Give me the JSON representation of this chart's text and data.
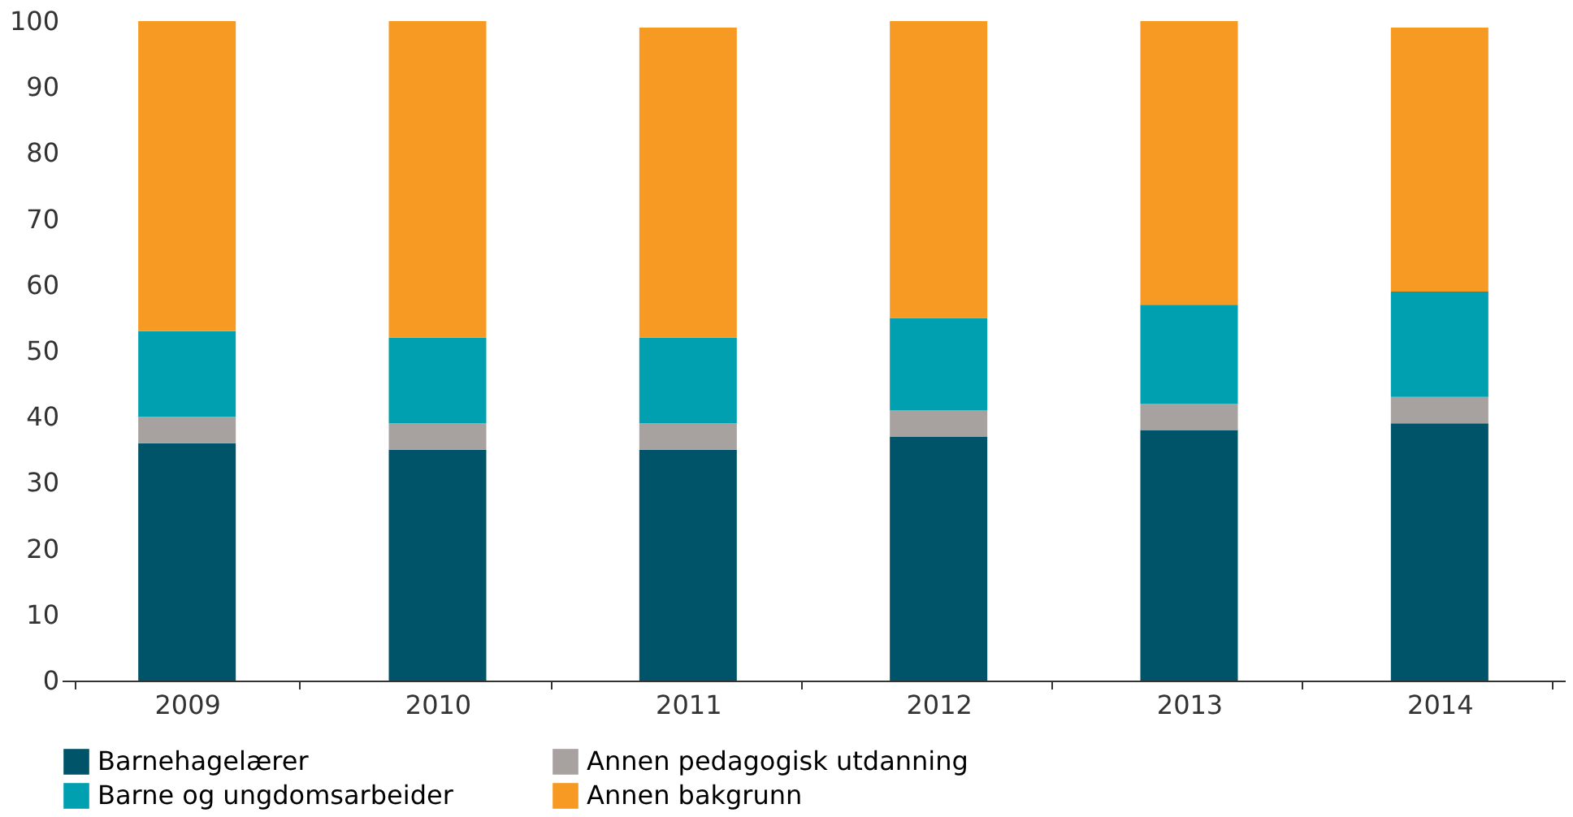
{
  "chart_data": {
    "type": "bar",
    "stacked": true,
    "categories": [
      "2009",
      "2010",
      "2011",
      "2012",
      "2013",
      "2014"
    ],
    "series": [
      {
        "name": "Barnehagelærer",
        "color": "#005469",
        "values": [
          36,
          35,
          35,
          37,
          38,
          39
        ]
      },
      {
        "name": "Annen pedagogisk utdanning",
        "color": "#a7a19f",
        "values": [
          4,
          4,
          4,
          4,
          4,
          4
        ]
      },
      {
        "name": "Barne og ungdomsarbeider",
        "color": "#00a0b0",
        "values": [
          13,
          13,
          13,
          14,
          15,
          16
        ]
      },
      {
        "name": "Annen bakgrunn",
        "color": "#f79a23",
        "values": [
          47,
          48,
          47,
          45,
          43,
          40
        ]
      }
    ],
    "ylim": [
      0,
      100
    ],
    "yticks": [
      0,
      10,
      20,
      30,
      40,
      50,
      60,
      70,
      80,
      90,
      100
    ],
    "grid": false,
    "legend": "bottom"
  }
}
